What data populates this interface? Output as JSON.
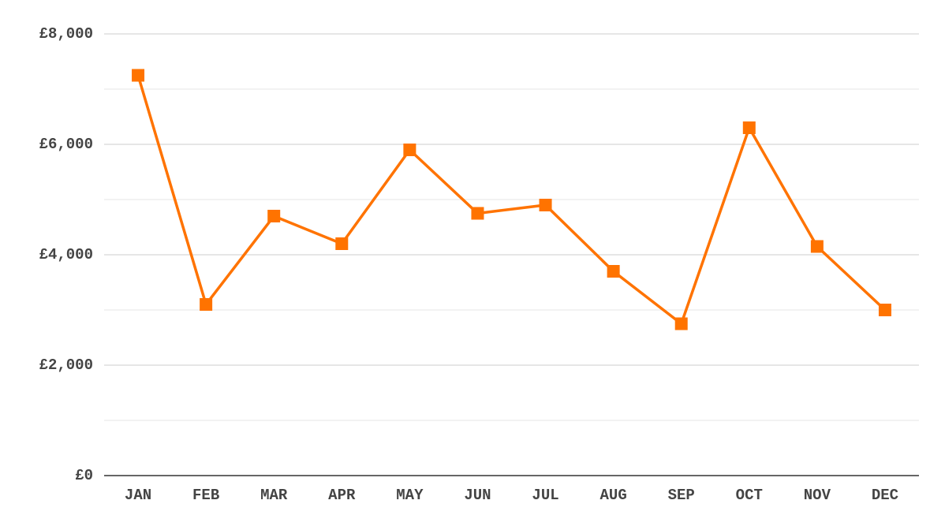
{
  "chart_data": {
    "type": "line",
    "categories": [
      "JAN",
      "FEB",
      "MAR",
      "APR",
      "MAY",
      "JUN",
      "JUL",
      "AUG",
      "SEP",
      "OCT",
      "NOV",
      "DEC"
    ],
    "values": [
      7250,
      3100,
      4700,
      4200,
      5900,
      4750,
      4900,
      3700,
      2750,
      6300,
      4150,
      3000
    ],
    "color": "#ff7300",
    "ylim": [
      0,
      8000
    ],
    "yticks": [
      {
        "value": 0,
        "label": "£0"
      },
      {
        "value": 2000,
        "label": "£2,000"
      },
      {
        "value": 4000,
        "label": "£4,000"
      },
      {
        "value": 6000,
        "label": "£6,000"
      },
      {
        "value": 8000,
        "label": "£8,000"
      }
    ],
    "minor_yticks": [
      1000,
      3000,
      5000,
      7000
    ],
    "grid": true
  }
}
